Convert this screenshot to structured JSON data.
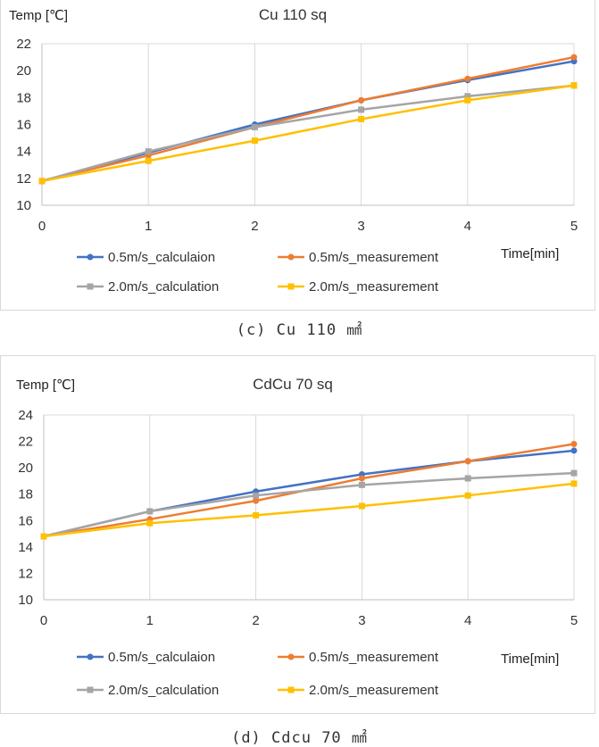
{
  "chart_data": [
    {
      "type": "line",
      "title": "Cu 110 sq",
      "ylabel": "Temp [℃]",
      "xlabel": "Time[min]",
      "x": [
        0,
        1,
        2,
        3,
        4,
        5
      ],
      "ylim": [
        10,
        22
      ],
      "yticks": [
        10,
        12,
        14,
        16,
        18,
        20,
        22
      ],
      "grid": "vertical",
      "series": [
        {
          "name": "0.5m/s_calculaion",
          "color": "#4472c4",
          "marker": "circle",
          "values": [
            11.8,
            13.9,
            16.0,
            17.8,
            19.3,
            20.7
          ]
        },
        {
          "name": "0.5m/s_measurement",
          "color": "#ed7d31",
          "marker": "circle",
          "values": [
            11.8,
            13.7,
            15.8,
            17.8,
            19.4,
            21.0
          ]
        },
        {
          "name": "2.0m/s_calculation",
          "color": "#a5a5a5",
          "marker": "square",
          "values": [
            11.8,
            14.0,
            15.8,
            17.1,
            18.1,
            18.9
          ]
        },
        {
          "name": "2.0m/s_measurement",
          "color": "#ffc000",
          "marker": "square",
          "values": [
            11.8,
            13.3,
            14.8,
            16.4,
            17.8,
            18.9
          ]
        }
      ],
      "caption": "(c) Cu 110 ㎟"
    },
    {
      "type": "line",
      "title": "CdCu 70 sq",
      "ylabel": "Temp [℃]",
      "xlabel": "Time[min]",
      "x": [
        0,
        1,
        2,
        3,
        4,
        5
      ],
      "ylim": [
        10,
        24
      ],
      "yticks": [
        10,
        12,
        14,
        16,
        18,
        20,
        22,
        24
      ],
      "grid": "vertical",
      "series": [
        {
          "name": "0.5m/s_calculaion",
          "color": "#4472c4",
          "marker": "circle",
          "values": [
            14.8,
            16.7,
            18.2,
            19.5,
            20.5,
            21.3
          ]
        },
        {
          "name": "0.5m/s_measurement",
          "color": "#ed7d31",
          "marker": "circle",
          "values": [
            14.8,
            16.1,
            17.5,
            19.2,
            20.5,
            21.8
          ]
        },
        {
          "name": "2.0m/s_calculation",
          "color": "#a5a5a5",
          "marker": "square",
          "values": [
            14.8,
            16.7,
            17.9,
            18.7,
            19.2,
            19.6
          ]
        },
        {
          "name": "2.0m/s_measurement",
          "color": "#ffc000",
          "marker": "square",
          "values": [
            14.8,
            15.8,
            16.4,
            17.1,
            17.9,
            18.8
          ]
        }
      ],
      "caption": "(d) Cdcu 70 ㎟"
    }
  ]
}
